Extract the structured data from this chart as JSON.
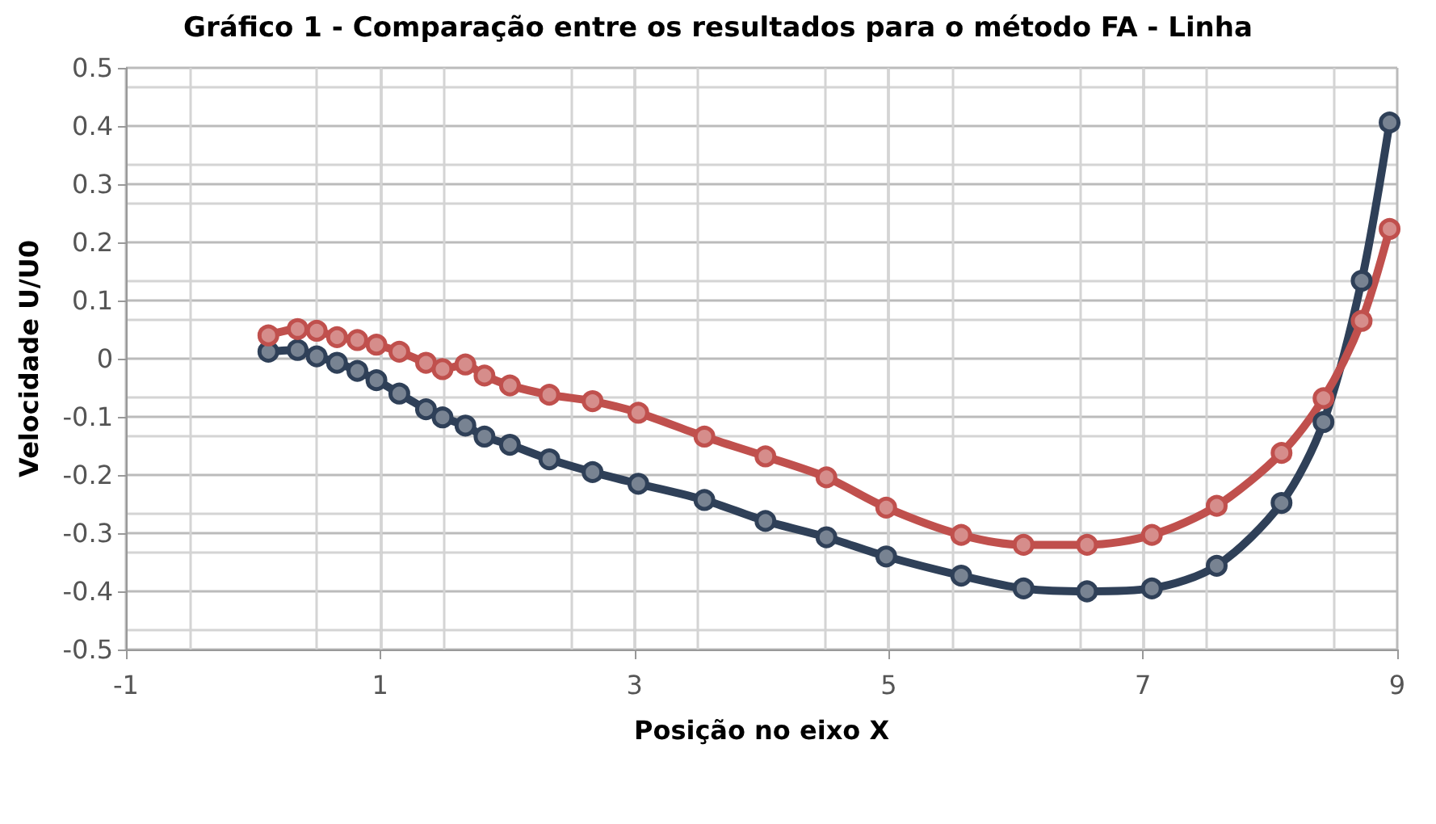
{
  "chart_data": {
    "type": "line",
    "title": "Gráfico 1 - Comparação entre os resultados para o método FA - Linha",
    "xlabel": "Posição no eixo X",
    "ylabel": "Velocidade U/U0",
    "xlim": [
      -1,
      9
    ],
    "xticks": [
      -1,
      1,
      3,
      5,
      7,
      9
    ],
    "ylim": [
      -0.5,
      0.5
    ],
    "yticks": [
      -0.5,
      -0.4,
      -0.3,
      -0.2,
      -0.1,
      0,
      0.1,
      0.2,
      0.3,
      0.4,
      0.5
    ],
    "grid": true,
    "marker": "circle",
    "line_style": "solid",
    "series": [
      {
        "color": "#2f4058",
        "x": [
          0.12,
          0.35,
          0.5,
          0.66,
          0.82,
          0.97,
          1.15,
          1.36,
          1.49,
          1.67,
          1.82,
          2.02,
          2.33,
          2.67,
          3.03,
          3.55,
          4.03,
          4.51,
          4.98,
          5.57,
          6.06,
          6.56,
          7.07,
          7.58,
          8.09,
          8.42,
          8.72,
          8.94
        ],
        "values": [
          0.012,
          0.015,
          0.004,
          -0.007,
          -0.021,
          -0.037,
          -0.06,
          -0.087,
          -0.101,
          -0.115,
          -0.134,
          -0.148,
          -0.173,
          -0.195,
          -0.215,
          -0.243,
          -0.279,
          -0.307,
          -0.34,
          -0.373,
          -0.395,
          -0.4,
          -0.395,
          -0.356,
          -0.248,
          -0.109,
          0.134,
          0.406
        ]
      },
      {
        "color": "#c0504d",
        "x": [
          0.12,
          0.35,
          0.5,
          0.66,
          0.82,
          0.97,
          1.15,
          1.36,
          1.49,
          1.67,
          1.82,
          2.02,
          2.33,
          2.67,
          3.03,
          3.55,
          4.03,
          4.51,
          4.98,
          5.57,
          6.06,
          6.56,
          7.07,
          7.58,
          8.09,
          8.42,
          8.72,
          8.94
        ],
        "values": [
          0.04,
          0.051,
          0.048,
          0.037,
          0.032,
          0.024,
          0.012,
          -0.007,
          -0.018,
          -0.01,
          -0.029,
          -0.046,
          -0.062,
          -0.073,
          -0.093,
          -0.134,
          -0.168,
          -0.204,
          -0.256,
          -0.303,
          -0.32,
          -0.32,
          -0.303,
          -0.253,
          -0.162,
          -0.068,
          0.065,
          0.223
        ]
      }
    ]
  }
}
